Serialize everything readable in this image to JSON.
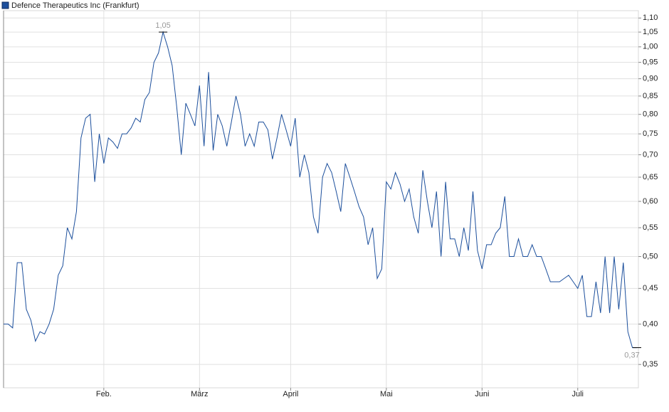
{
  "chart_data": {
    "type": "line",
    "series": [
      {
        "name": "Defence Therapeutics Inc (Frankfurt)",
        "color": "#1c4f9c",
        "values": [
          0.4,
          0.4,
          0.395,
          0.49,
          0.49,
          0.42,
          0.405,
          0.378,
          0.39,
          0.387,
          0.4,
          0.42,
          0.47,
          0.485,
          0.55,
          0.53,
          0.58,
          0.74,
          0.79,
          0.8,
          0.64,
          0.75,
          0.68,
          0.74,
          0.73,
          0.715,
          0.75,
          0.75,
          0.765,
          0.79,
          0.78,
          0.84,
          0.86,
          0.95,
          0.98,
          1.05,
          1.0,
          0.94,
          0.82,
          0.7,
          0.83,
          0.8,
          0.77,
          0.88,
          0.72,
          0.92,
          0.71,
          0.8,
          0.77,
          0.72,
          0.78,
          0.85,
          0.8,
          0.72,
          0.75,
          0.72,
          0.78,
          0.78,
          0.76,
          0.69,
          0.74,
          0.8,
          0.76,
          0.72,
          0.79,
          0.65,
          0.7,
          0.66,
          0.57,
          0.54,
          0.65,
          0.68,
          0.66,
          0.62,
          0.58,
          0.68,
          0.65,
          0.62,
          0.59,
          0.57,
          0.52,
          0.55,
          0.465,
          0.48,
          0.64,
          0.625,
          0.66,
          0.635,
          0.6,
          0.625,
          0.57,
          0.54,
          0.665,
          0.6,
          0.55,
          0.62,
          0.5,
          0.64,
          0.53,
          0.53,
          0.5,
          0.55,
          0.51,
          0.62,
          0.51,
          0.48,
          0.52,
          0.52,
          0.54,
          0.55,
          0.61,
          0.5,
          0.5,
          0.53,
          0.5,
          0.5,
          0.52,
          0.5,
          0.5,
          0.48,
          0.46,
          0.46,
          0.46,
          0.465,
          0.47,
          0.46,
          0.45,
          0.47,
          0.41,
          0.41,
          0.46,
          0.415,
          0.5,
          0.415,
          0.5,
          0.42,
          0.49,
          0.39,
          0.37,
          0.37
        ],
        "value_labels": [
          null,
          null,
          null,
          null,
          null,
          null,
          null,
          null,
          null,
          null,
          null,
          null,
          null,
          null,
          null,
          null,
          null,
          null,
          null,
          null,
          null,
          null,
          null,
          null,
          null,
          null,
          null,
          null,
          null,
          null,
          null,
          null,
          null,
          null,
          null,
          "1,05",
          null,
          null,
          null,
          null,
          null,
          null,
          null,
          null,
          null,
          null,
          null,
          null,
          null,
          null,
          null,
          null,
          null,
          null,
          null,
          null,
          null,
          null,
          null,
          null,
          null,
          null,
          null,
          null,
          null,
          null,
          null,
          null,
          null,
          null,
          null,
          null,
          null,
          null,
          null,
          null,
          null,
          null,
          null,
          null,
          null,
          null,
          null,
          null,
          null,
          null,
          null,
          null,
          null,
          null,
          null,
          null,
          null,
          null,
          null,
          null,
          null,
          null,
          null,
          null,
          null,
          null,
          null,
          null,
          null,
          null,
          null,
          null,
          null,
          null,
          null,
          null,
          null,
          null,
          null,
          null,
          null,
          null,
          null,
          null,
          null,
          null,
          null,
          null,
          null,
          null,
          null,
          null,
          null,
          null,
          null,
          null,
          null,
          null,
          null,
          null,
          null,
          null,
          null,
          "0,37"
        ]
      }
    ],
    "categories": [
      null,
      null,
      null,
      null,
      null,
      null,
      null,
      null,
      null,
      null,
      null,
      null,
      null,
      null,
      null,
      null,
      null,
      null,
      null,
      null,
      null,
      null,
      "Feb.",
      null,
      null,
      null,
      null,
      null,
      null,
      null,
      null,
      null,
      null,
      null,
      null,
      null,
      null,
      null,
      null,
      null,
      null,
      null,
      null,
      "März",
      null,
      null,
      null,
      null,
      null,
      null,
      null,
      null,
      null,
      null,
      null,
      null,
      null,
      null,
      null,
      null,
      null,
      null,
      null,
      "April",
      null,
      null,
      null,
      null,
      null,
      null,
      null,
      null,
      null,
      null,
      null,
      null,
      null,
      null,
      null,
      null,
      null,
      null,
      null,
      null,
      "Mai",
      null,
      null,
      null,
      null,
      null,
      null,
      null,
      null,
      null,
      null,
      null,
      null,
      null,
      null,
      null,
      null,
      null,
      null,
      null,
      null,
      "Juni",
      null,
      null,
      null,
      null,
      null,
      null,
      null,
      null,
      null,
      null,
      null,
      null,
      null,
      null,
      null,
      null,
      null,
      null,
      null,
      null,
      "Juli",
      null,
      null,
      null,
      null,
      null,
      null,
      null,
      null,
      null,
      null,
      null,
      null,
      null
    ],
    "ylim": [
      0.324,
      1.127
    ],
    "yticks": [
      {
        "value": 0.35,
        "label": "0,35"
      },
      {
        "value": 0.4,
        "label": "0,40"
      },
      {
        "value": 0.45,
        "label": "0,45"
      },
      {
        "value": 0.5,
        "label": "0,50"
      },
      {
        "value": 0.55,
        "label": "0,55"
      },
      {
        "value": 0.6,
        "label": "0,60"
      },
      {
        "value": 0.65,
        "label": "0,65"
      },
      {
        "value": 0.7,
        "label": "0,70"
      },
      {
        "value": 0.75,
        "label": "0,75"
      },
      {
        "value": 0.8,
        "label": "0,80"
      },
      {
        "value": 0.85,
        "label": "0,85"
      },
      {
        "value": 0.9,
        "label": "0,90"
      },
      {
        "value": 0.95,
        "label": "0,95"
      },
      {
        "value": 1.0,
        "label": "1,00"
      },
      {
        "value": 1.05,
        "label": "1,05"
      },
      {
        "value": 1.1,
        "label": "1,10"
      }
    ],
    "log_scale": true,
    "grid": true
  }
}
